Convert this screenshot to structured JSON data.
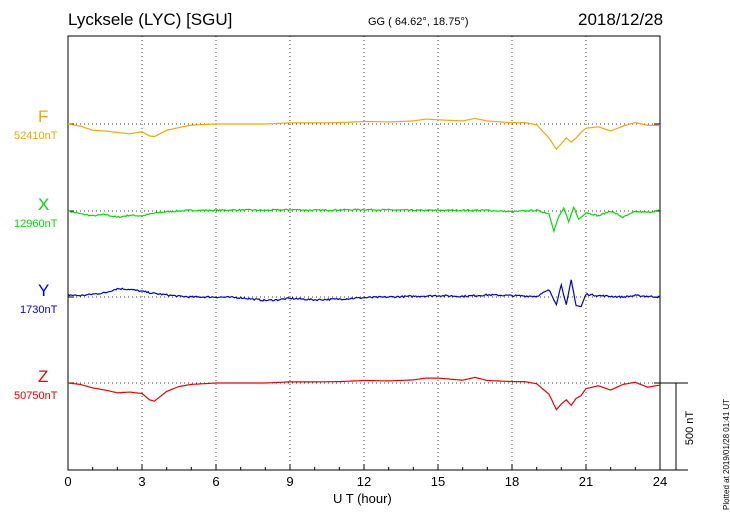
{
  "header": {
    "station": "Lycksele (LYC)  [SGU]",
    "coords": "GG ( 64.62°,  18.75°)",
    "date": "2018/12/28"
  },
  "plotted_note": "Plotted at 2019/01/28 01:41 UT",
  "colors": {
    "F": "#f5a800",
    "X": "#00dd00",
    "Y": "#0000dd",
    "Z": "#ee0000"
  },
  "chart_data": {
    "type": "line",
    "xlabel": "U T (hour)",
    "xlim": [
      0,
      24
    ],
    "xticks": [
      "0",
      "3",
      "6",
      "9",
      "12",
      "15",
      "18",
      "21",
      "24"
    ],
    "scale_bar": "500 nT",
    "units": "nT (offset from baseline)",
    "series": [
      {
        "name": "F",
        "baseline_label": "52410nT",
        "x": [
          0,
          0.5,
          1,
          1.5,
          2,
          2.5,
          3,
          3.3,
          3.5,
          4,
          4.5,
          5,
          6,
          7,
          8,
          9,
          10,
          11,
          12,
          13,
          14,
          14.5,
          15,
          16,
          16.5,
          17,
          17.5,
          18,
          18.5,
          19,
          19.5,
          19.8,
          20,
          20.2,
          20.4,
          20.6,
          20.8,
          21,
          21.5,
          22,
          22.5,
          23,
          23.5,
          24
        ],
        "values": [
          0,
          -15,
          -45,
          -50,
          -60,
          -70,
          -55,
          -85,
          -90,
          -45,
          -25,
          -8,
          0,
          0,
          0,
          8,
          8,
          10,
          18,
          15,
          22,
          35,
          30,
          22,
          40,
          22,
          15,
          10,
          10,
          -5,
          -100,
          -180,
          -140,
          -100,
          -130,
          -100,
          -60,
          -30,
          -20,
          -50,
          -15,
          10,
          -10,
          -10
        ]
      },
      {
        "name": "X",
        "baseline_label": "12960nT",
        "x": [
          0,
          0.5,
          1,
          1.5,
          2,
          2.5,
          3,
          3.5,
          4,
          5,
          6,
          7,
          8,
          9,
          10,
          11,
          12,
          13,
          14,
          15,
          16,
          17,
          18,
          19,
          19.5,
          19.7,
          19.9,
          20.1,
          20.3,
          20.5,
          20.7,
          21,
          21.5,
          22,
          22.5,
          23,
          23.5,
          24
        ],
        "values": [
          0,
          -20,
          -35,
          -25,
          -45,
          -30,
          -35,
          -15,
          -5,
          5,
          5,
          8,
          5,
          10,
          5,
          8,
          10,
          8,
          5,
          5,
          5,
          5,
          -5,
          5,
          -20,
          -140,
          -40,
          20,
          -80,
          30,
          -60,
          -10,
          -35,
          0,
          -45,
          -5,
          -10,
          5
        ],
        "noise": 5
      },
      {
        "name": "Y",
        "baseline_label": "1730nT",
        "x": [
          0,
          0.5,
          1,
          1.5,
          2,
          2.5,
          3,
          3.5,
          4,
          4.5,
          5,
          6,
          7,
          7.5,
          8,
          8.5,
          9,
          10,
          11,
          12,
          13,
          14,
          15,
          16,
          17,
          18,
          19,
          19.5,
          19.8,
          20,
          20.2,
          20.4,
          20.6,
          20.8,
          21,
          21.5,
          22,
          22.5,
          23,
          23.5,
          24
        ],
        "values": [
          15,
          10,
          20,
          30,
          60,
          55,
          40,
          25,
          15,
          5,
          0,
          0,
          -5,
          -15,
          -25,
          -20,
          -10,
          -20,
          -15,
          -5,
          0,
          5,
          10,
          5,
          15,
          10,
          5,
          50,
          -50,
          90,
          -60,
          120,
          -60,
          -70,
          20,
          10,
          5,
          0,
          10,
          5,
          0
        ],
        "noise": 6
      },
      {
        "name": "Z",
        "baseline_label": "50750nT",
        "x": [
          0,
          0.5,
          1,
          1.5,
          2,
          2.5,
          3,
          3.3,
          3.5,
          4,
          4.5,
          5,
          6,
          7,
          8,
          9,
          10,
          11,
          12,
          13,
          14,
          14.5,
          15,
          16,
          16.5,
          17,
          18,
          18.5,
          19,
          19.5,
          19.8,
          20,
          20.2,
          20.4,
          20.6,
          20.8,
          21,
          21.5,
          22,
          22.5,
          23,
          23.5,
          24
        ],
        "values": [
          0,
          -10,
          -35,
          -50,
          -70,
          -65,
          -75,
          -120,
          -130,
          -60,
          -25,
          -10,
          0,
          0,
          0,
          8,
          8,
          10,
          18,
          15,
          22,
          35,
          35,
          20,
          40,
          18,
          10,
          10,
          -5,
          -80,
          -190,
          -150,
          -120,
          -160,
          -110,
          -90,
          -40,
          -20,
          -50,
          -10,
          5,
          -30,
          -15
        ]
      }
    ]
  }
}
